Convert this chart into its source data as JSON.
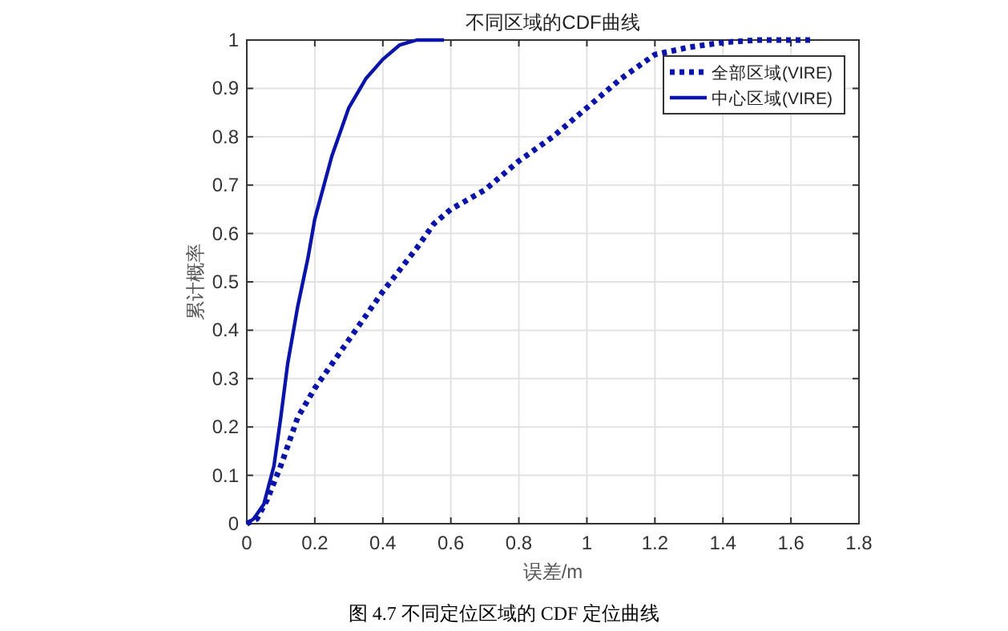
{
  "chart_data": {
    "type": "line",
    "title": "不同区域的CDF曲线",
    "xlabel": "误差/m",
    "ylabel": "累计概率",
    "annotations": [
      "图 4.7  不同定位区域的 CDF 定位曲线"
    ],
    "xlim": [
      0,
      1.8
    ],
    "xticks": [
      0,
      0.2,
      0.4,
      0.6,
      0.8,
      1,
      1.2,
      1.4,
      1.6,
      1.8
    ],
    "ylim": [
      0,
      1
    ],
    "yticks": [
      0,
      0.1,
      0.2,
      0.3,
      0.4,
      0.5,
      0.6,
      0.7,
      0.8,
      0.9,
      1
    ],
    "grid": true,
    "legend": "top right",
    "series": [
      {
        "name": "全部区域(VIRE)",
        "color": "#0a14a8",
        "line_style": "dotted",
        "x": [
          0,
          0.03,
          0.06,
          0.1,
          0.15,
          0.2,
          0.3,
          0.4,
          0.5,
          0.55,
          0.6,
          0.7,
          0.8,
          0.9,
          1.0,
          1.1,
          1.2,
          1.3,
          1.4,
          1.5,
          1.66
        ],
        "values": [
          0,
          0.01,
          0.05,
          0.12,
          0.22,
          0.28,
          0.38,
          0.48,
          0.57,
          0.62,
          0.65,
          0.69,
          0.75,
          0.8,
          0.86,
          0.92,
          0.97,
          0.985,
          0.995,
          1.0,
          1.0
        ]
      },
      {
        "name": "中心区域(VIRE)",
        "color": "#0a14a8",
        "line_style": "solid",
        "x": [
          0,
          0.02,
          0.05,
          0.08,
          0.1,
          0.12,
          0.15,
          0.18,
          0.2,
          0.25,
          0.3,
          0.35,
          0.4,
          0.45,
          0.5,
          0.58
        ],
        "values": [
          0,
          0.01,
          0.04,
          0.12,
          0.22,
          0.33,
          0.45,
          0.55,
          0.63,
          0.76,
          0.86,
          0.92,
          0.96,
          0.99,
          1.0,
          1.0
        ]
      }
    ]
  }
}
